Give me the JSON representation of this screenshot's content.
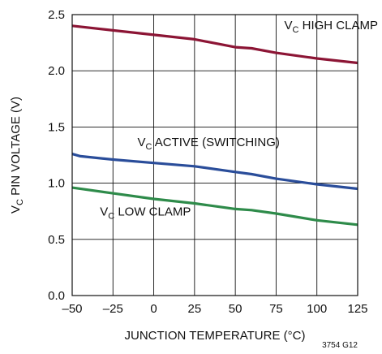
{
  "chart_data": {
    "type": "line",
    "title": "",
    "xlabel": "JUNCTION TEMPERATURE (°C)",
    "ylabel": {
      "main": "V",
      "sub": "C",
      "rest": " PIN VOLTAGE (V)"
    },
    "xlim": [
      -50,
      125
    ],
    "ylim": [
      0,
      2.5
    ],
    "x_ticks": [
      -50,
      -25,
      0,
      25,
      50,
      75,
      100,
      125
    ],
    "x_tick_labels": [
      "–50",
      "–25",
      "0",
      "25",
      "50",
      "75",
      "100",
      "125"
    ],
    "y_ticks": [
      0,
      0.5,
      1.0,
      1.5,
      2.0,
      2.5
    ],
    "y_tick_labels": [
      "0.0",
      "0.5",
      "1.0",
      "1.5",
      "2.0",
      "2.5"
    ],
    "grid": true,
    "legend": "none",
    "series": [
      {
        "color": "#8c1535",
        "points": [
          [
            -50,
            2.4
          ],
          [
            -25,
            2.36
          ],
          [
            0,
            2.32
          ],
          [
            25,
            2.28
          ],
          [
            50,
            2.21
          ],
          [
            60,
            2.2
          ],
          [
            75,
            2.16
          ],
          [
            100,
            2.11
          ],
          [
            125,
            2.07
          ]
        ]
      },
      {
        "color": "#2a4d9a",
        "points": [
          [
            -50,
            1.26
          ],
          [
            -45,
            1.24
          ],
          [
            -25,
            1.21
          ],
          [
            0,
            1.18
          ],
          [
            25,
            1.15
          ],
          [
            50,
            1.1
          ],
          [
            60,
            1.08
          ],
          [
            75,
            1.04
          ],
          [
            100,
            0.99
          ],
          [
            125,
            0.95
          ]
        ]
      },
      {
        "color": "#2e8b4a",
        "points": [
          [
            -50,
            0.96
          ],
          [
            -25,
            0.91
          ],
          [
            0,
            0.86
          ],
          [
            25,
            0.82
          ],
          [
            50,
            0.77
          ],
          [
            60,
            0.76
          ],
          [
            75,
            0.73
          ],
          [
            100,
            0.67
          ],
          [
            125,
            0.63
          ]
        ]
      }
    ],
    "annotations": [
      {
        "main": "V",
        "sub": "C",
        "rest": " HIGH CLAMP",
        "x": 80,
        "y": 2.37
      },
      {
        "main": "V",
        "sub": "C",
        "rest": " ACTIVE (SWITCHING)",
        "x": -10,
        "y": 1.33
      },
      {
        "main": "V",
        "sub": "C",
        "rest": " LOW CLAMP",
        "x": -33,
        "y": 0.71
      }
    ],
    "figure_code": "3754 G12"
  }
}
